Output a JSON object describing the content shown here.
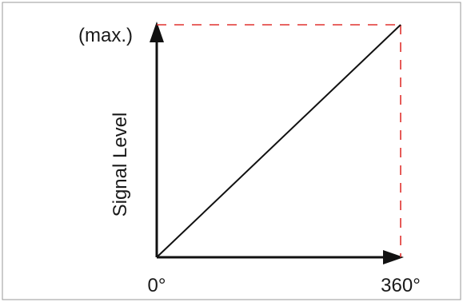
{
  "chart_data": {
    "type": "line",
    "title": "",
    "xlabel": "",
    "ylabel": "Signal Level",
    "x_tick_labels": [
      "0°",
      "360°"
    ],
    "y_max_label": "(max.)",
    "xlim": [
      0,
      360
    ],
    "ylim": [
      0,
      1
    ],
    "grid": false,
    "series": [
      {
        "x": [
          0,
          360
        ],
        "y": [
          0,
          1
        ],
        "color": "#111111",
        "style": "solid"
      }
    ],
    "reference_lines": [
      {
        "x": [
          0,
          360
        ],
        "y": [
          1,
          1
        ],
        "color": "#e0322f",
        "style": "dashed"
      },
      {
        "x": [
          360,
          360
        ],
        "y": [
          1,
          0
        ],
        "color": "#e0322f",
        "style": "dashed"
      }
    ]
  }
}
